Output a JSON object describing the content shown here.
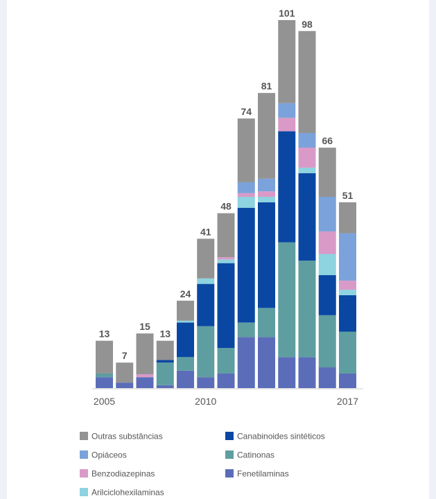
{
  "chart_data": {
    "type": "bar",
    "stacked": true,
    "title": "",
    "xlabel": "",
    "ylabel": "",
    "ylim": [
      0,
      101
    ],
    "grid": false,
    "legend_position": "bottom",
    "categories": [
      "2005",
      "2006",
      "2007",
      "2008",
      "2009",
      "2010",
      "2011",
      "2012",
      "2013",
      "2014",
      "2015",
      "2016",
      "2017"
    ],
    "x_tick_labels": [
      {
        "category": "2005",
        "label": "2005"
      },
      {
        "category": "2010",
        "label": "2010"
      },
      {
        "category": "2017",
        "label": "2017"
      }
    ],
    "totals": [
      13,
      7,
      15,
      13,
      24,
      41,
      48,
      74,
      81,
      101,
      98,
      66,
      51
    ],
    "series": [
      {
        "name": "Fenetilaminas",
        "color": "#5b6db8",
        "values": [
          3,
          1.5,
          3,
          0.8,
          4.8,
          3,
          4,
          14,
          14,
          8.5,
          8.5,
          5.7,
          4
        ]
      },
      {
        "name": "Catinonas",
        "color": "#5e9ea0",
        "values": [
          1,
          0,
          0,
          6.2,
          3.7,
          14,
          7,
          4,
          8,
          31.5,
          26.5,
          14.3,
          11.5
        ]
      },
      {
        "name": "Canabinoides sintéticos",
        "color": "#0a47a3",
        "values": [
          0,
          0,
          0,
          0.7,
          9.5,
          11.6,
          23.3,
          31.5,
          29,
          30.5,
          24,
          11,
          10
        ]
      },
      {
        "name": "Arilciclohexilaminas",
        "color": "#8dd3e0",
        "values": [
          0,
          0,
          0,
          0,
          0.5,
          1.5,
          1,
          3,
          1.5,
          0,
          1.5,
          5.8,
          1.5
        ]
      },
      {
        "name": "Benzodiazepinas",
        "color": "#d99ac8",
        "values": [
          0,
          0,
          0.8,
          0,
          0,
          0,
          0.6,
          1,
          1.5,
          3.7,
          5.5,
          6.2,
          2.5
        ]
      },
      {
        "name": "Opiáceos",
        "color": "#7ba2da",
        "values": [
          0,
          0,
          0,
          0,
          0,
          0,
          0,
          3,
          3.5,
          4,
          4,
          9.5,
          13
        ]
      },
      {
        "name": "Outras substâncias",
        "color": "#939393",
        "values": [
          9,
          5.5,
          11.2,
          5.3,
          5.5,
          10.9,
          12.1,
          17.5,
          23.5,
          22.8,
          28,
          13.5,
          8.5
        ]
      }
    ]
  },
  "legend": {
    "items": [
      {
        "label": "Outras substâncias",
        "color": "#939393"
      },
      {
        "label": "Canabinoides sintéticos",
        "color": "#0a47a3"
      },
      {
        "label": "Opiáceos",
        "color": "#7ba2da"
      },
      {
        "label": "Catinonas",
        "color": "#5e9ea0"
      },
      {
        "label": "Benzodiazepinas",
        "color": "#d99ac8"
      },
      {
        "label": "Fenetilaminas",
        "color": "#5b6db8"
      },
      {
        "label": "Arilciclohexilaminas",
        "color": "#8dd3e0"
      }
    ]
  }
}
